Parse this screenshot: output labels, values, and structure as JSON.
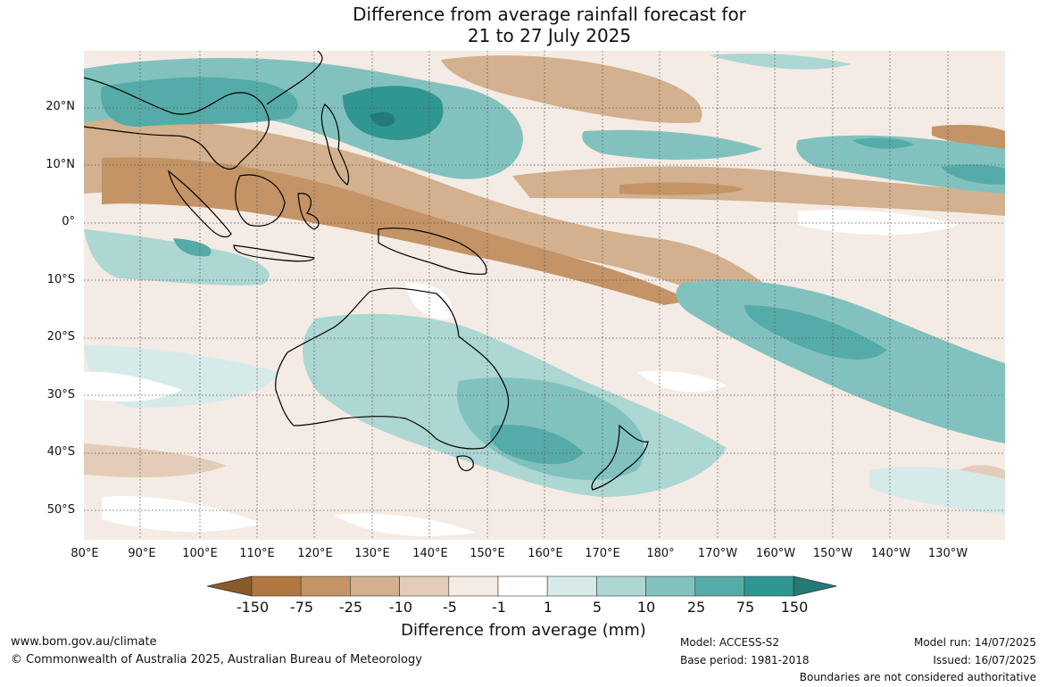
{
  "header": {
    "title_line1": "Difference from average rainfall forecast for",
    "title_line2": "21 to 27 July 2025"
  },
  "map": {
    "region": "Australia and surrounding Pacific / Indian Ocean",
    "lat_labels": [
      "20°N",
      "10°N",
      "0°",
      "10°S",
      "20°S",
      "30°S",
      "40°S",
      "50°S"
    ],
    "lon_labels": [
      "80°E",
      "90°E",
      "100°E",
      "110°E",
      "120°E",
      "130°E",
      "140°E",
      "150°E",
      "160°E",
      "170°E",
      "180°",
      "170°W",
      "160°W",
      "150°W",
      "140°W",
      "130°W"
    ],
    "grid_lines": "dotted"
  },
  "legend": {
    "ticks": [
      "-150",
      "-75",
      "-25",
      "-10",
      "-5",
      "-1",
      "1",
      "5",
      "10",
      "25",
      "75",
      "150"
    ],
    "colors": [
      "#8a5a2b",
      "#b07840",
      "#c49466",
      "#d3b08e",
      "#e3cdb8",
      "#f4ebe4",
      "#ffffff",
      "#d6ebe9",
      "#acd7d3",
      "#82c2be",
      "#55aba8",
      "#2f9692",
      "#237a77"
    ],
    "title": "Difference from average (mm)"
  },
  "footer": {
    "website": "www.bom.gov.au/climate",
    "copyright": "© Commonwealth of Australia 2025, Australian Bureau of Meteorology",
    "model": "Model: ACCESS-S2",
    "base_period": "Base period: 1981-2018",
    "model_run": "Model run: 14/07/2025",
    "issued": "Issued: 16/07/2025",
    "disclaimer": "Boundaries are not considered authoritative"
  }
}
